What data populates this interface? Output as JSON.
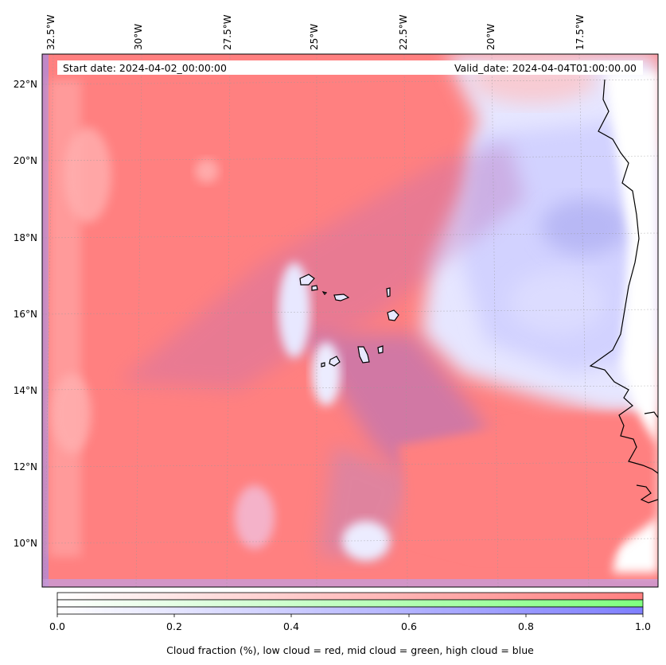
{
  "map": {
    "start_date": "Start date: 2024-04-02_00:00:00",
    "valid_date": "Valid_date: 2024-04-04T01:00:00.00",
    "lon_labels": [
      "32.5°W",
      "30°W",
      "27.5°W",
      "25°W",
      "22.5°W",
      "20°W",
      "17.5°W"
    ],
    "lat_labels": [
      "22°N",
      "20°N",
      "18°N",
      "16°N",
      "14°N",
      "12°N",
      "10°N"
    ],
    "gridlines": true
  },
  "colorbar": {
    "ticks": [
      "0.0",
      "0.2",
      "0.4",
      "0.6",
      "0.8",
      "1.0"
    ],
    "label": "Cloud fraction (%), low cloud = red, mid cloud = green, high cloud = blue",
    "colors": {
      "low": "#ff7f7f",
      "mid": "#7fff7f",
      "high": "#7f7fff"
    }
  },
  "chart_data": {
    "type": "heatmap",
    "variables": [
      "low cloud",
      "mid cloud",
      "high cloud"
    ],
    "xlabel": "",
    "ylabel": "",
    "xlim_lon": [
      -32.7,
      -15.2
    ],
    "ylim_lat": [
      8.9,
      22.8
    ],
    "colorbar_range": [
      0.0,
      1.0
    ]
  }
}
